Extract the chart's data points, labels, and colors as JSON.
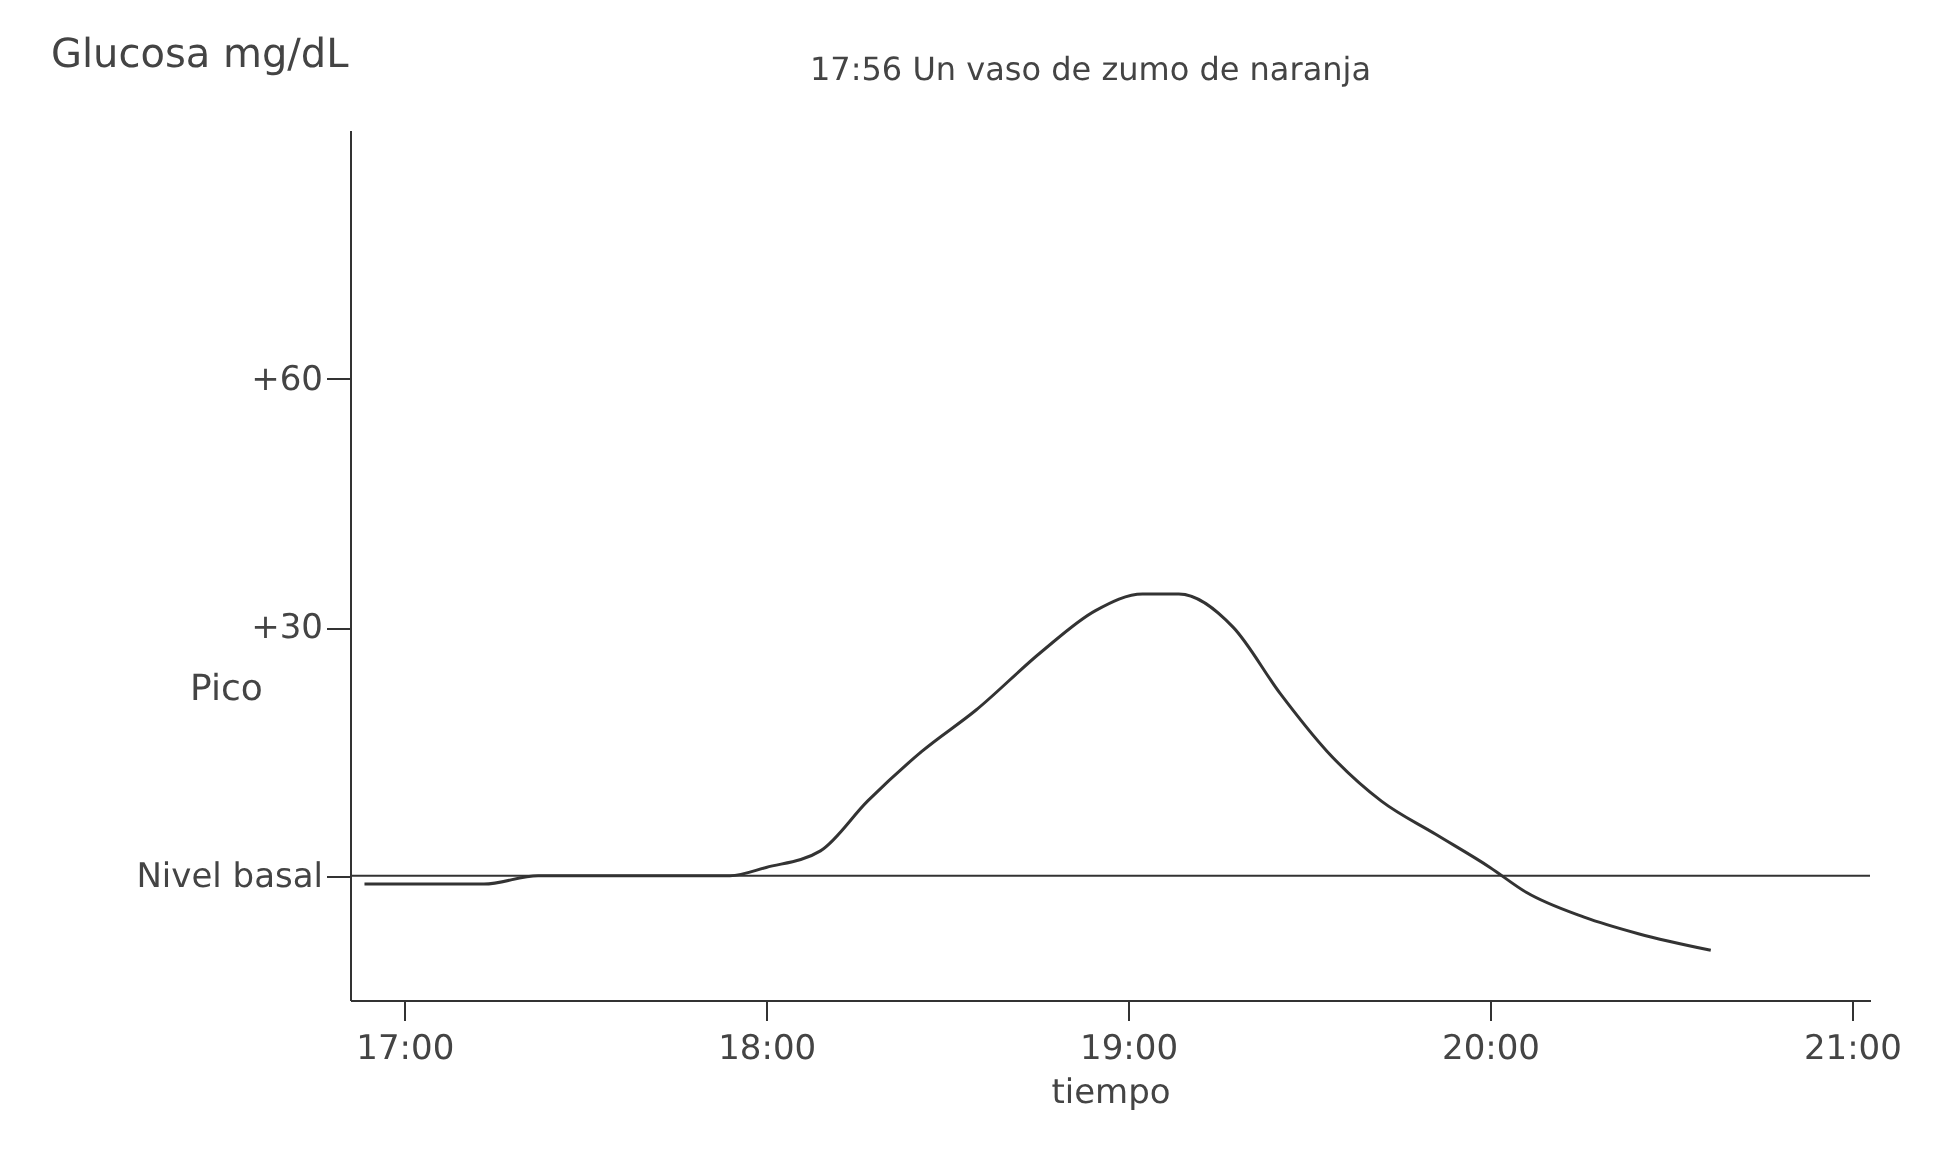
{
  "chart_data": {
    "type": "line",
    "xlabel": "tiempo",
    "ylabel": "Glucosa mg/dL",
    "annotations": [
      "17:56 Un vaso de zumo de naranja",
      "Pico"
    ],
    "x": [
      16.89,
      17.22,
      17.37,
      17.67,
      17.9,
      18.0,
      18.15,
      18.28,
      18.43,
      18.58,
      18.76,
      18.91,
      19.04,
      19.14,
      19.29,
      19.42,
      19.55,
      19.7,
      19.85,
      20.0,
      20.1,
      20.26,
      20.41,
      20.61
    ],
    "series": [
      {
        "color": "#333333",
        "values": [
          -1,
          -1,
          0,
          0,
          0,
          1,
          3,
          9,
          15,
          20,
          27,
          32,
          34,
          34,
          30,
          22,
          15,
          9,
          5,
          1,
          -2,
          -5,
          -7,
          -9
        ]
      }
    ],
    "xlim": [
      16.85,
      21.05
    ],
    "xticks": [
      {
        "value": 17,
        "label": "17:00"
      },
      {
        "value": 18,
        "label": "18:00"
      },
      {
        "value": 19,
        "label": "19:00"
      },
      {
        "value": 20,
        "label": "20:00"
      },
      {
        "value": 21,
        "label": "21:00"
      }
    ],
    "ylim": [
      -15,
      90
    ],
    "yticks": [
      {
        "value": 0,
        "label": "Nivel basal"
      },
      {
        "value": 30,
        "label": "+30"
      },
      {
        "value": 60,
        "label": "+60"
      }
    ],
    "ref_lines": [
      {
        "axis": "y",
        "value": 0,
        "color": "#333333"
      }
    ],
    "grid": false,
    "marker": "none",
    "line_style": "solid"
  }
}
